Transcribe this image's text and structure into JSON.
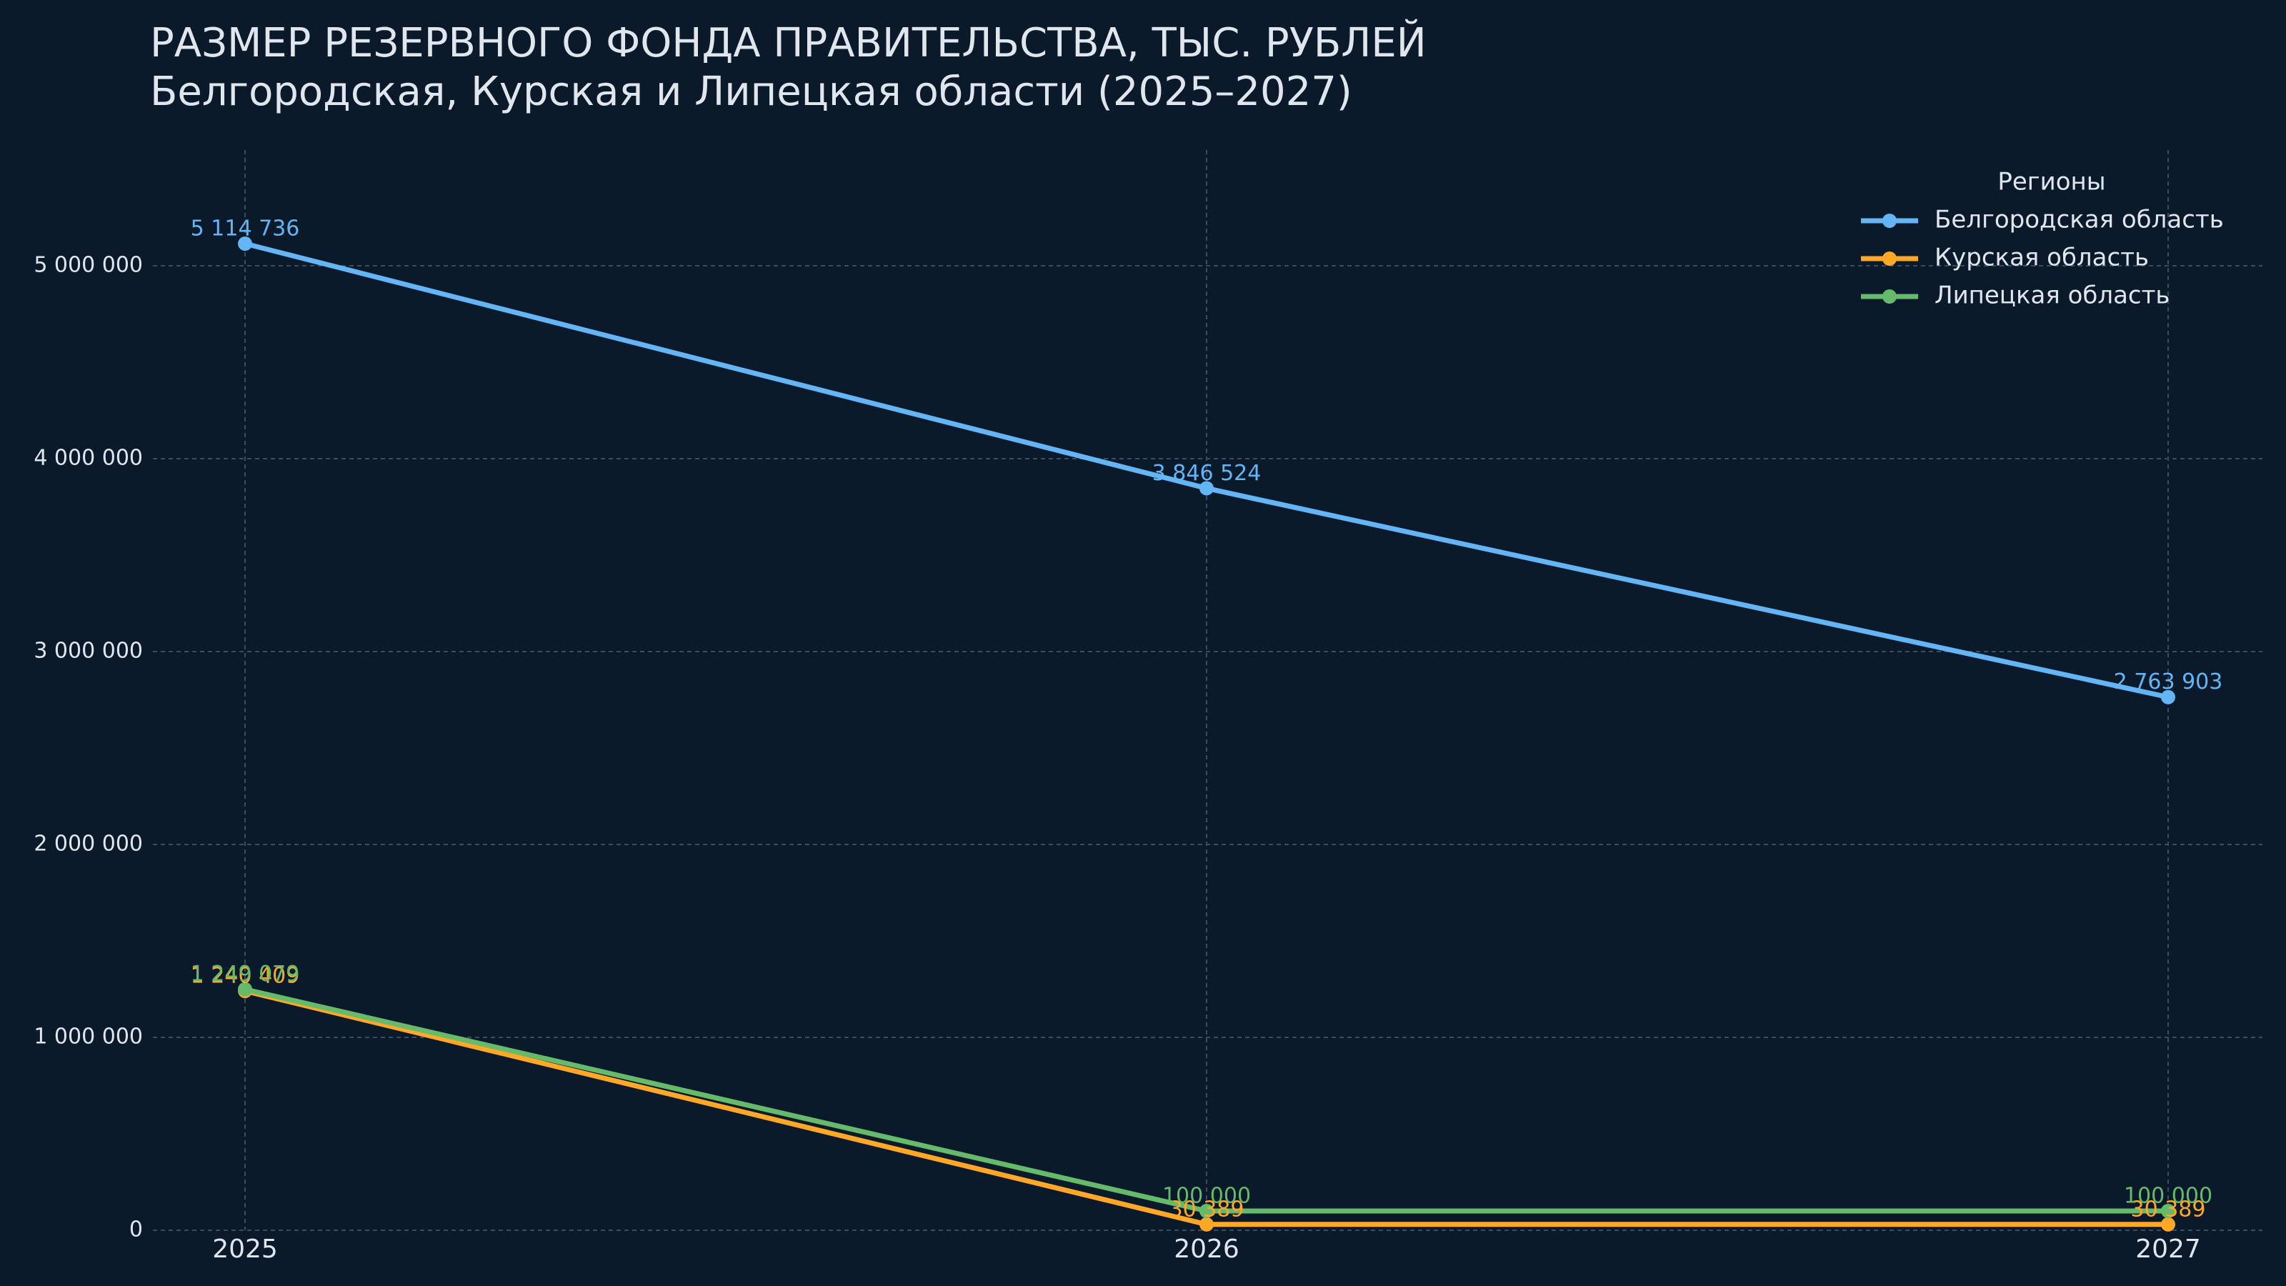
{
  "chart_data": {
    "type": "line",
    "title": "РАЗМЕР РЕЗЕРВНОГО ФОНДА ПРАВИТЕЛЬСТВА, ТЫС. РУБЛЕЙ",
    "subtitle": "Белгородская, Курская и Липецкая области (2025–2027)",
    "categories": [
      "2025",
      "2026",
      "2027"
    ],
    "series": [
      {
        "name": "Белгородская область",
        "color": "#64b5f6",
        "values": [
          5114736,
          3846524,
          2763903
        ],
        "value_labels": [
          "5 114 736",
          "3 846 524",
          "2 763 903"
        ]
      },
      {
        "name": "Курская область",
        "color": "#ffa726",
        "values": [
          1240409,
          30389,
          30389
        ],
        "value_labels": [
          "1 240 409",
          "30 389",
          "30 389"
        ]
      },
      {
        "name": "Липецкая область",
        "color": "#66bb6a",
        "values": [
          1249079,
          100000,
          100000
        ],
        "value_labels": [
          "1 249 079",
          "100 000",
          "100 000"
        ]
      }
    ],
    "ylim": [
      0,
      5600000
    ],
    "yticks": [
      0,
      {
        "value": 1000000,
        "label": "1 000 000"
      },
      {
        "value": 2000000,
        "label": "2 000 000"
      },
      {
        "value": 3000000,
        "label": "3 000 000"
      },
      {
        "value": 4000000,
        "label": "4 000 000"
      },
      {
        "value": 5000000,
        "label": "5 000 000"
      }
    ],
    "grid": true,
    "legend_title": "Регионы",
    "legend_position": "upper right"
  }
}
